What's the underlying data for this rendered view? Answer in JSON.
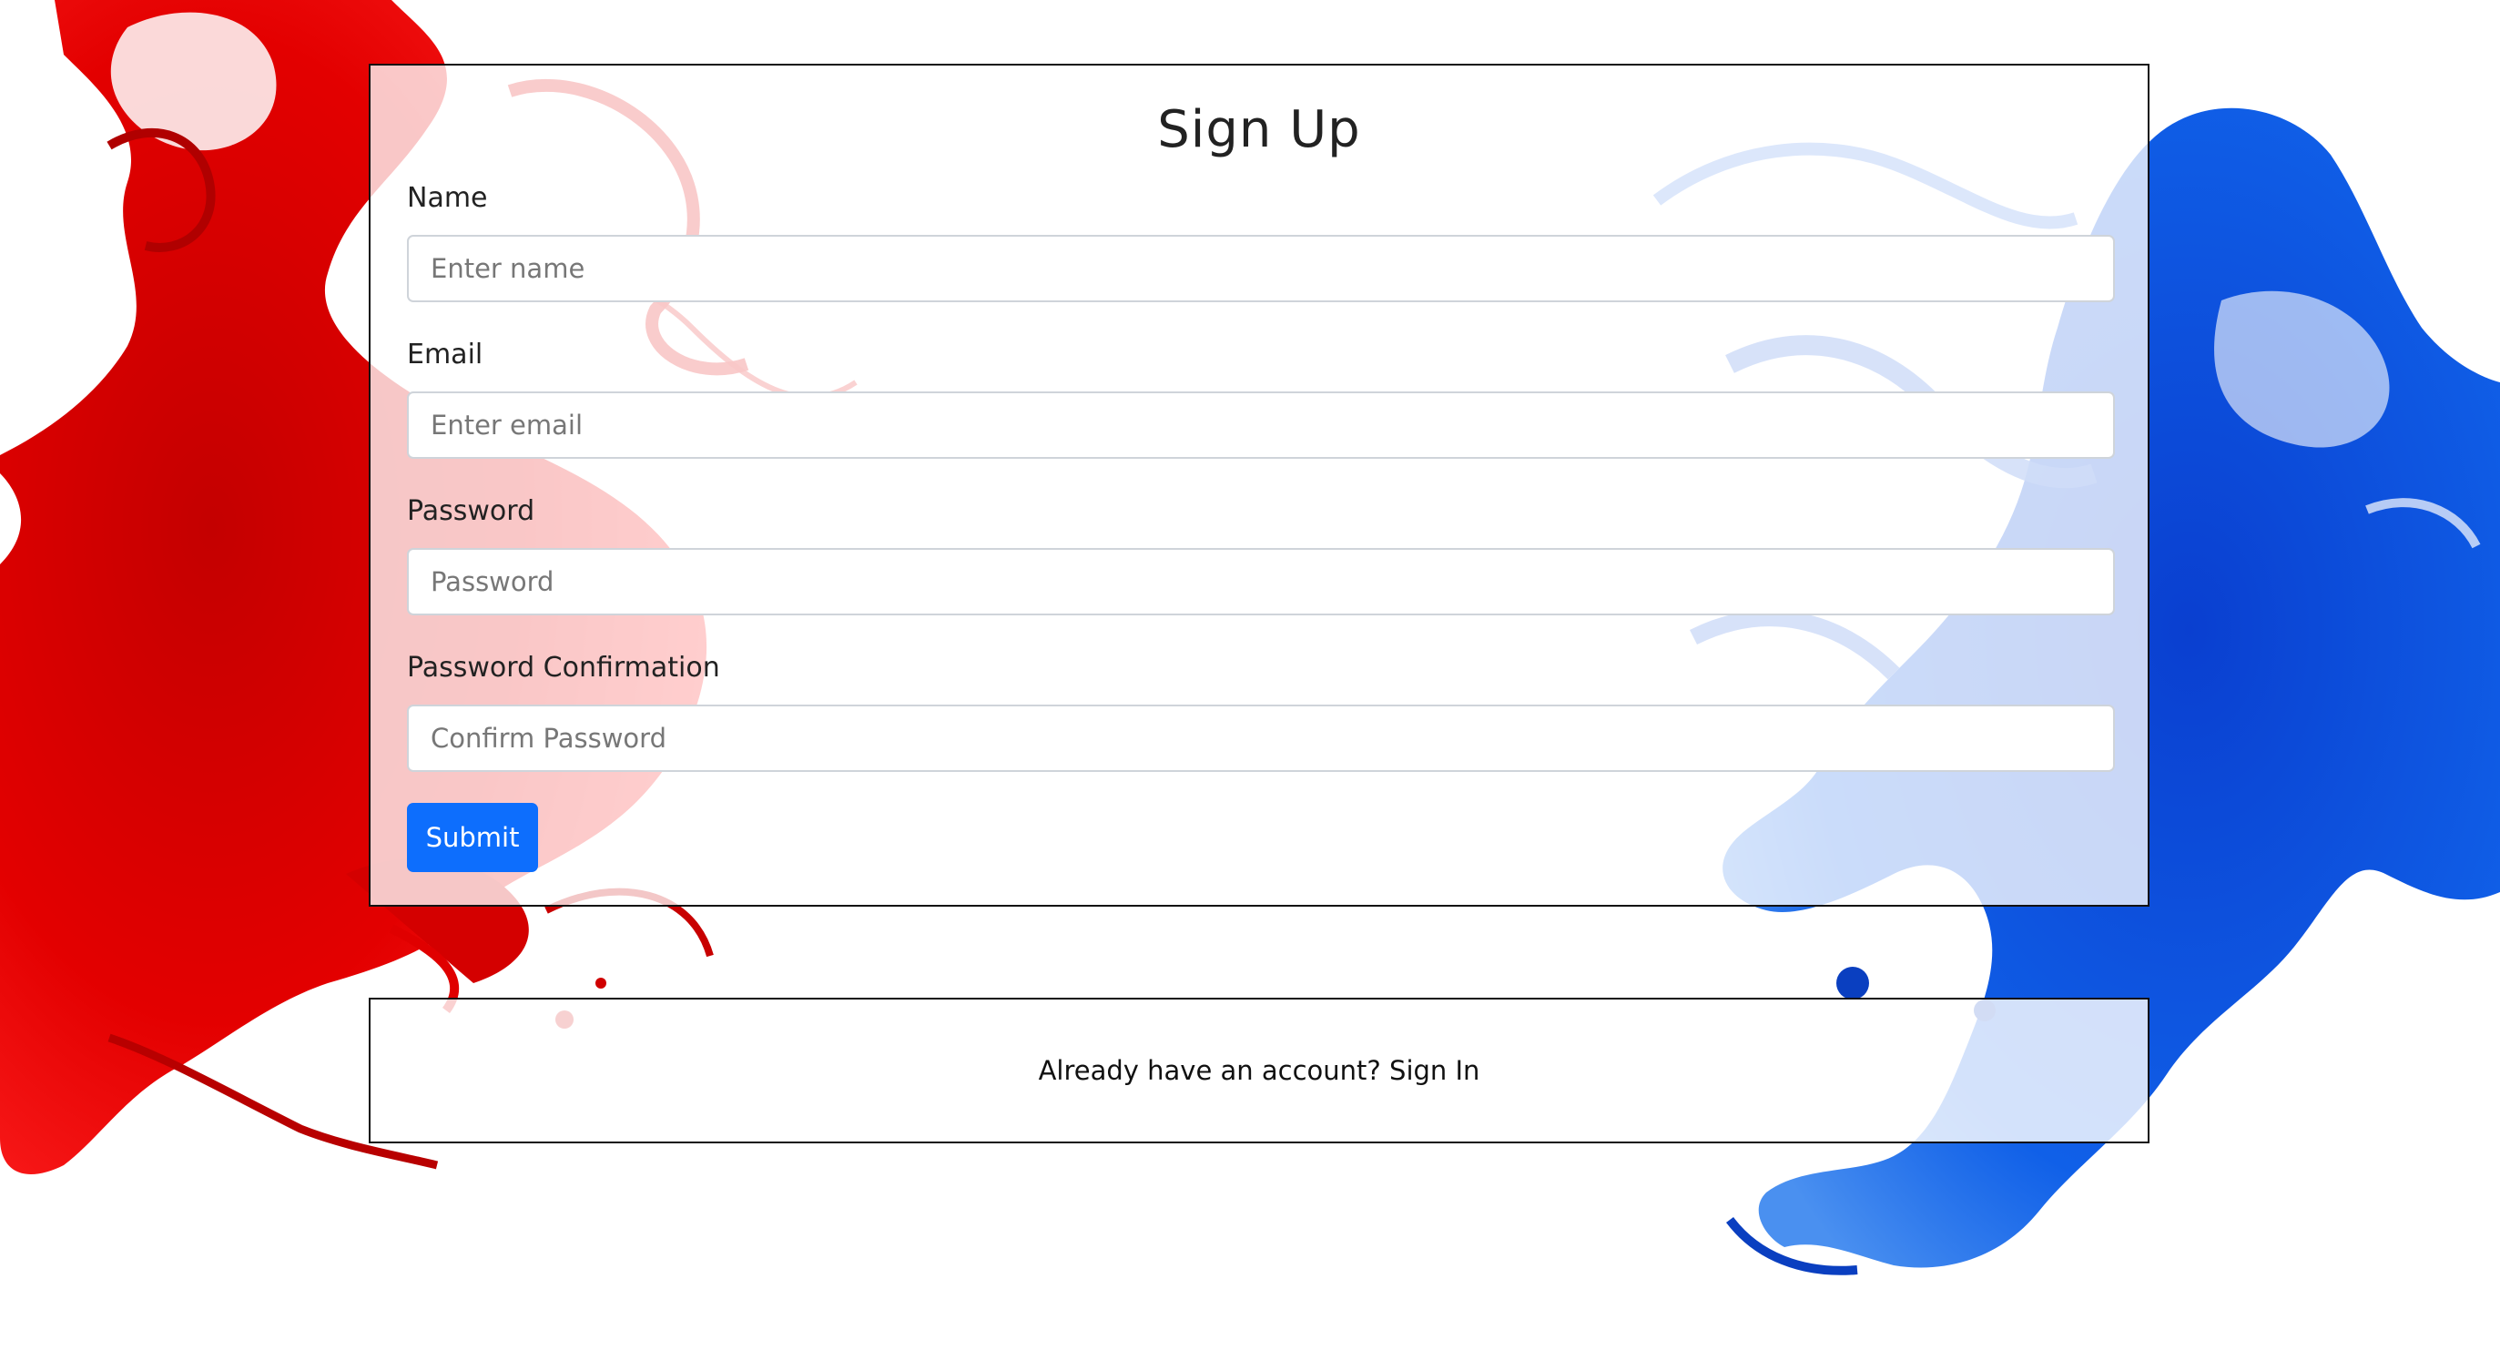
{
  "form": {
    "title": "Sign Up",
    "fields": [
      {
        "label": "Name",
        "placeholder": "Enter name",
        "value": ""
      },
      {
        "label": "Email",
        "placeholder": "Enter email",
        "value": ""
      },
      {
        "label": "Password",
        "placeholder": "Password",
        "value": ""
      },
      {
        "label": "Password Confirmation",
        "placeholder": "Confirm Password",
        "value": ""
      }
    ],
    "submit_label": "Submit"
  },
  "footer": {
    "prompt": "Already have an account?",
    "link_label": "Sign In"
  },
  "colors": {
    "accent": "#0d6efd",
    "splash_left": "#e00000",
    "splash_right": "#0046d6"
  }
}
